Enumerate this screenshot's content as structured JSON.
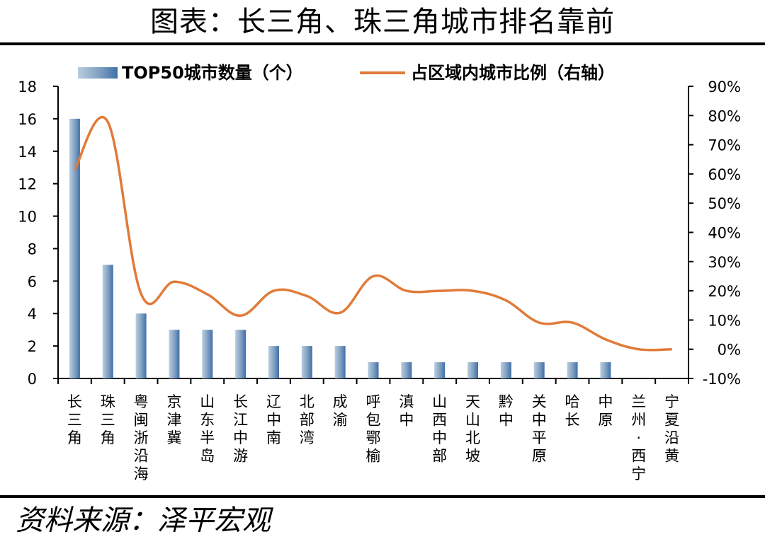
{
  "title": "图表：长三角、珠三角城市排名靠前",
  "source": "资料来源：泽平宏观",
  "chart_data": {
    "type": "bar",
    "categories": [
      "长三角",
      "珠三角",
      "粤闽浙沿海",
      "京津冀",
      "山东半岛",
      "长江中游",
      "辽中南",
      "北部湾",
      "成渝",
      "呼包鄂榆",
      "滇中",
      "山西中部",
      "天山北坡",
      "黔中",
      "关中平原",
      "哈长",
      "中原",
      "兰州-西宁",
      "宁夏沿黄"
    ],
    "series": [
      {
        "name": "TOP50城市数量（个）",
        "type": "bar",
        "axis": "left",
        "values": [
          16,
          7,
          4,
          3,
          3,
          3,
          2,
          2,
          2,
          1,
          1,
          1,
          1,
          1,
          1,
          1,
          1,
          0,
          0
        ],
        "color": "#7f9fc0"
      },
      {
        "name": "占区域内城市比例（右轴）",
        "type": "line",
        "axis": "right",
        "values": [
          61.5,
          77.8,
          19.0,
          23.1,
          18.8,
          11.5,
          20.0,
          18.2,
          12.5,
          25.0,
          20.0,
          20.0,
          20.0,
          16.7,
          9.1,
          9.1,
          3.4,
          0,
          0
        ],
        "color": "#e07b39"
      }
    ],
    "y_left": {
      "min": 0,
      "max": 18,
      "step": 2
    },
    "y_right": {
      "min": -10,
      "max": 90,
      "step": 10,
      "unit": "%"
    },
    "legend": "top",
    "grid": false
  }
}
